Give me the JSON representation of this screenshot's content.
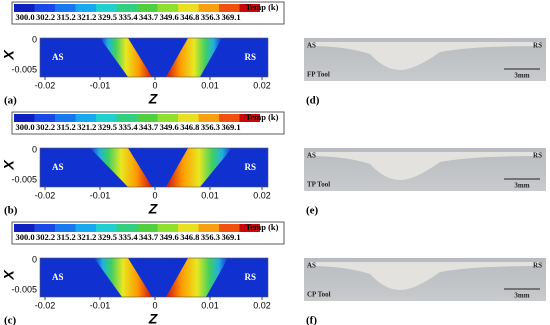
{
  "left_panels": [
    {
      "label": "(a)",
      "legend_title": "Temp (k)",
      "legend_labels": [
        "300.0",
        "302.2",
        "315.2",
        "321.2",
        "329.5",
        "335.4",
        "343.7",
        "349.6",
        "346.8",
        "356.3",
        "369.1"
      ],
      "x_axis_label": "Z",
      "y_axis_label": "X",
      "x_ticks": [
        "-0.02",
        "-0.01",
        "0",
        "0.01",
        "0.02"
      ],
      "y_ticks": [
        "0",
        "-0.005"
      ],
      "side_labels": [
        "AS",
        "RS"
      ]
    },
    {
      "label": "(b)",
      "legend_title": "Temp (k)",
      "legend_labels": [
        "300.0",
        "302.2",
        "315.2",
        "321.2",
        "329.5",
        "335.4",
        "343.7",
        "349.6",
        "346.8",
        "356.3",
        "369.1"
      ],
      "x_axis_label": "Z",
      "y_axis_label": "X",
      "x_ticks": [
        "-0.02",
        "-0.01",
        "0",
        "0.01",
        "0.02"
      ],
      "y_ticks": [
        "0",
        "-0.005"
      ],
      "side_labels": [
        "AS",
        "RS"
      ]
    },
    {
      "label": "(c)",
      "legend_title": "Temp (k)",
      "legend_labels": [
        "300.0",
        "302.2",
        "315.2",
        "321.2",
        "329.5",
        "335.4",
        "343.7",
        "349.6",
        "346.8",
        "356.3",
        "369.1"
      ],
      "x_axis_label": "Z",
      "y_axis_label": "X",
      "x_ticks": [
        "-0.02",
        "-0.01",
        "0",
        "0.01",
        "0.02"
      ],
      "y_ticks": [
        "0",
        "-0.005"
      ],
      "side_labels": [
        "AS",
        "RS"
      ]
    }
  ],
  "right_panels": [
    {
      "label": "(d)",
      "side_labels": [
        "AS",
        "RS"
      ],
      "tool": "FP Tool",
      "scale": "3mm"
    },
    {
      "label": "(e)",
      "side_labels": [
        "AS",
        "RS"
      ],
      "tool": "TP Tool",
      "scale": "3mm"
    },
    {
      "label": "(f)",
      "side_labels": [
        "AS",
        "RS"
      ],
      "tool": "CP Tool",
      "scale": "3mm"
    }
  ]
}
